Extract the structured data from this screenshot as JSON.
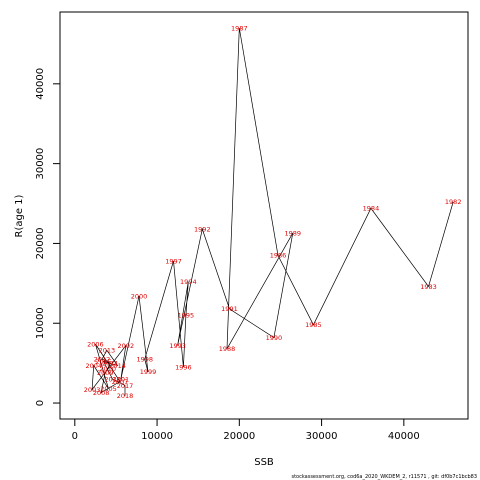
{
  "chart_data": {
    "type": "line",
    "title": "",
    "xlabel": "SSB",
    "ylabel": "R(age 1)",
    "xlim": [
      -1800,
      47800
    ],
    "ylim": [
      -2000,
      49000
    ],
    "xticks": [
      0,
      10000,
      20000,
      30000,
      40000
    ],
    "yticks": [
      0,
      10000,
      20000,
      30000,
      40000
    ],
    "grid": false,
    "label_color": "#e00000",
    "line_color": "#000000",
    "series": [
      {
        "points": [
          {
            "label": "1982",
            "x": 46000,
            "y": 25200
          },
          {
            "label": "1983",
            "x": 43000,
            "y": 14600
          },
          {
            "label": "1984",
            "x": 36000,
            "y": 24400
          },
          {
            "label": "1985",
            "x": 29000,
            "y": 9800
          },
          {
            "label": "1986",
            "x": 24700,
            "y": 18500
          },
          {
            "label": "1987",
            "x": 20000,
            "y": 47000
          },
          {
            "label": "1988",
            "x": 18500,
            "y": 6800
          },
          {
            "label": "1989",
            "x": 26500,
            "y": 21300
          },
          {
            "label": "1990",
            "x": 24200,
            "y": 8200
          },
          {
            "label": "1991",
            "x": 18800,
            "y": 11800
          },
          {
            "label": "1992",
            "x": 15500,
            "y": 21800
          },
          {
            "label": "1993",
            "x": 12500,
            "y": 7200
          },
          {
            "label": "1994",
            "x": 13800,
            "y": 15200
          },
          {
            "label": "1995",
            "x": 13500,
            "y": 11000
          },
          {
            "label": "1996",
            "x": 13200,
            "y": 4500
          },
          {
            "label": "1997",
            "x": 12000,
            "y": 17800
          },
          {
            "label": "1998",
            "x": 8500,
            "y": 5500
          },
          {
            "label": "1999",
            "x": 8900,
            "y": 3900
          },
          {
            "label": "2000",
            "x": 7800,
            "y": 13400
          },
          {
            "label": "2001",
            "x": 5600,
            "y": 3000
          },
          {
            "label": "2002",
            "x": 6200,
            "y": 7200
          },
          {
            "label": "2003",
            "x": 2100,
            "y": 1700
          },
          {
            "label": "2004",
            "x": 2300,
            "y": 4700
          },
          {
            "label": "2005",
            "x": 4100,
            "y": 1800
          },
          {
            "label": "2006",
            "x": 2500,
            "y": 7400
          },
          {
            "label": "2007",
            "x": 5500,
            "y": 2700
          },
          {
            "label": "2008",
            "x": 3200,
            "y": 1300
          },
          {
            "label": "2009",
            "x": 3700,
            "y": 3800
          },
          {
            "label": "2010",
            "x": 4000,
            "y": 4300
          },
          {
            "label": "2011",
            "x": 4300,
            "y": 5000
          },
          {
            "label": "2012",
            "x": 3300,
            "y": 5500
          },
          {
            "label": "2013",
            "x": 3900,
            "y": 6600
          },
          {
            "label": "2014",
            "x": 5200,
            "y": 4700
          },
          {
            "label": "2015",
            "x": 3500,
            "y": 5200
          },
          {
            "label": "2016",
            "x": 4600,
            "y": 3000
          },
          {
            "label": "2017",
            "x": 6100,
            "y": 2200
          },
          {
            "label": "2018",
            "x": 6100,
            "y": 900
          }
        ]
      }
    ]
  },
  "footer": "stockassessment.org, cod6a_2020_WKDEM_2, r11571 , git: df0b7c1bcb83"
}
